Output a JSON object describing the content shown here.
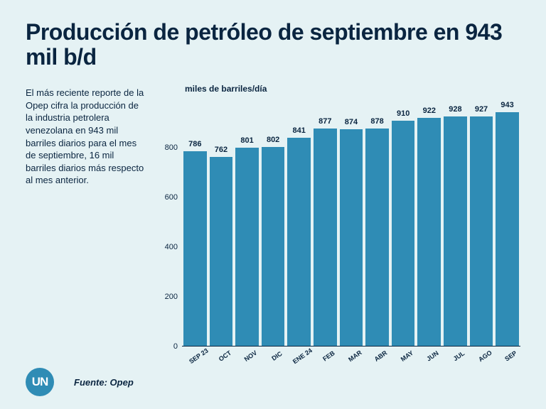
{
  "background_color": "#e5f2f4",
  "text_color": "#0a2540",
  "title": "Producción de petróleo de septiembre en 943 mil b/d",
  "description": "El más reciente reporte de la Opep cifra la producción de la industria petrolera venezolana en 943 mil barriles diarios para el mes de septiembre, 16 mil barriles diarios más respecto al mes anterior.",
  "chart": {
    "type": "bar",
    "ylabel": "miles de barriles/día",
    "ylim_max": 1000,
    "yticks": [
      0,
      200,
      400,
      600,
      800
    ],
    "bar_color": "#2f8cb5",
    "categories": [
      "SEP 23",
      "OCT",
      "NOV",
      "DIC",
      "ENE 24",
      "FEB",
      "MAR",
      "ABR",
      "MAY",
      "JUN",
      "JUL",
      "AGO",
      "SEP"
    ],
    "values": [
      786,
      762,
      801,
      802,
      841,
      877,
      874,
      878,
      910,
      922,
      928,
      927,
      943
    ]
  },
  "logo": {
    "text": "UN",
    "bg": "#2f8cb5"
  },
  "source_label": "Fuente: Opep"
}
